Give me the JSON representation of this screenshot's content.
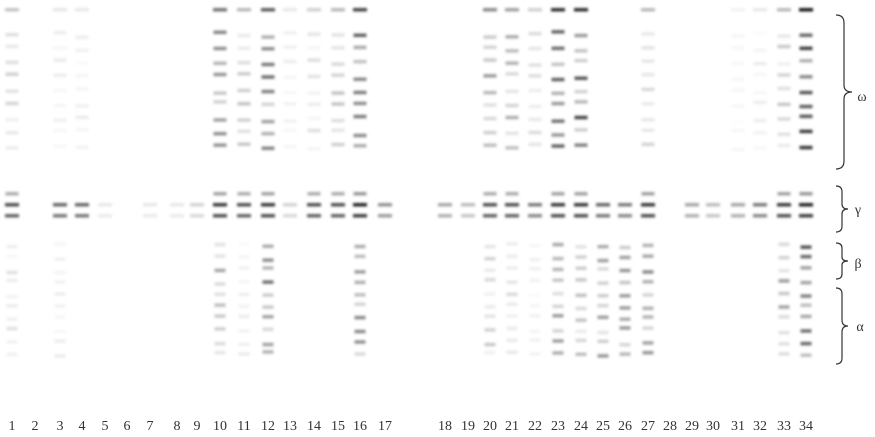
{
  "lanes": [
    "1",
    "2",
    "3",
    "4",
    "5",
    "6",
    "7",
    "8",
    "9",
    "10",
    "11",
    "12",
    "13",
    "14",
    "15",
    "16",
    "17",
    "18",
    "19",
    "20",
    "21",
    "22",
    "23",
    "24",
    "25",
    "26",
    "27",
    "28",
    "29",
    "30",
    "31",
    "32",
    "33",
    "34"
  ],
  "brackets": [
    {
      "label": "ω"
    },
    {
      "label": "γ"
    },
    {
      "label": "β"
    },
    {
      "label": "α"
    }
  ]
}
